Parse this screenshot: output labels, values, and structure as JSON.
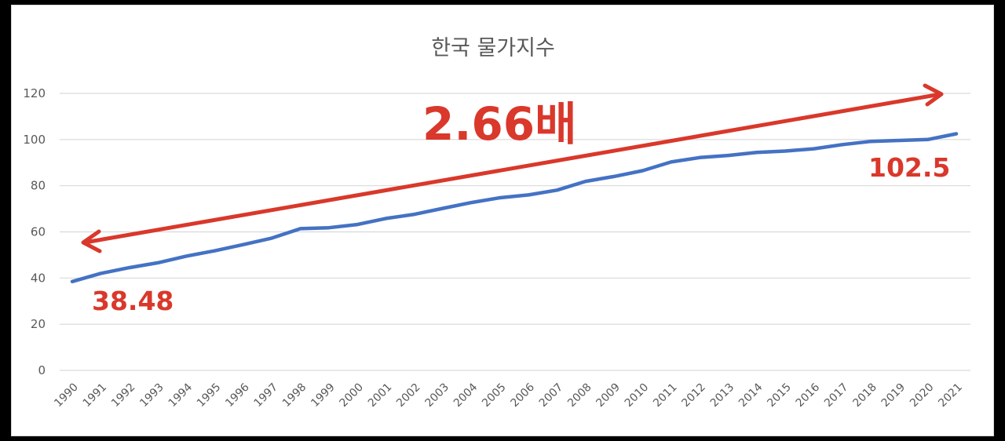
{
  "chart_data": {
    "type": "line",
    "title": "한국 물가지수",
    "xlabel": "",
    "ylabel": "",
    "ylim": [
      0,
      120
    ],
    "yticks": [
      0,
      20,
      40,
      60,
      80,
      100,
      120
    ],
    "grid": true,
    "legend": null,
    "x": [
      "1990",
      "1991",
      "1992",
      "1993",
      "1994",
      "1995",
      "1996",
      "1997",
      "1998",
      "1999",
      "2000",
      "2001",
      "2002",
      "2003",
      "2004",
      "2005",
      "2006",
      "2007",
      "2008",
      "2009",
      "2010",
      "2011",
      "2012",
      "2013",
      "2014",
      "2015",
      "2016",
      "2017",
      "2018",
      "2019",
      "2020",
      "2021"
    ],
    "series": [
      {
        "name": "물가지수",
        "color": "#4472c4",
        "values": [
          38.48,
          42.0,
          44.5,
          46.6,
          49.5,
          51.8,
          54.5,
          57.3,
          61.4,
          61.8,
          63.2,
          65.8,
          67.6,
          70.2,
          72.7,
          74.8,
          76.0,
          78.1,
          81.9,
          84.0,
          86.5,
          90.3,
          92.2,
          93.1,
          94.4,
          95.0,
          96.0,
          97.8,
          99.2,
          99.6,
          100.0,
          102.5
        ]
      }
    ],
    "annotations": [
      {
        "text": "2.66배",
        "color": "#d9382b",
        "type": "double-arrow-label"
      },
      {
        "text": "38.48",
        "color": "#d9382b",
        "target": "1990"
      },
      {
        "text": "102.5",
        "color": "#d9382b",
        "target": "2021"
      }
    ]
  },
  "labels": {
    "title": "한국 물가지수",
    "ratio": "2.66배",
    "start_value": "38.48",
    "end_value": "102.5"
  },
  "colors": {
    "line": "#4472c4",
    "annotation": "#d9382b",
    "grid": "#d9d9d9",
    "text": "#595959"
  }
}
